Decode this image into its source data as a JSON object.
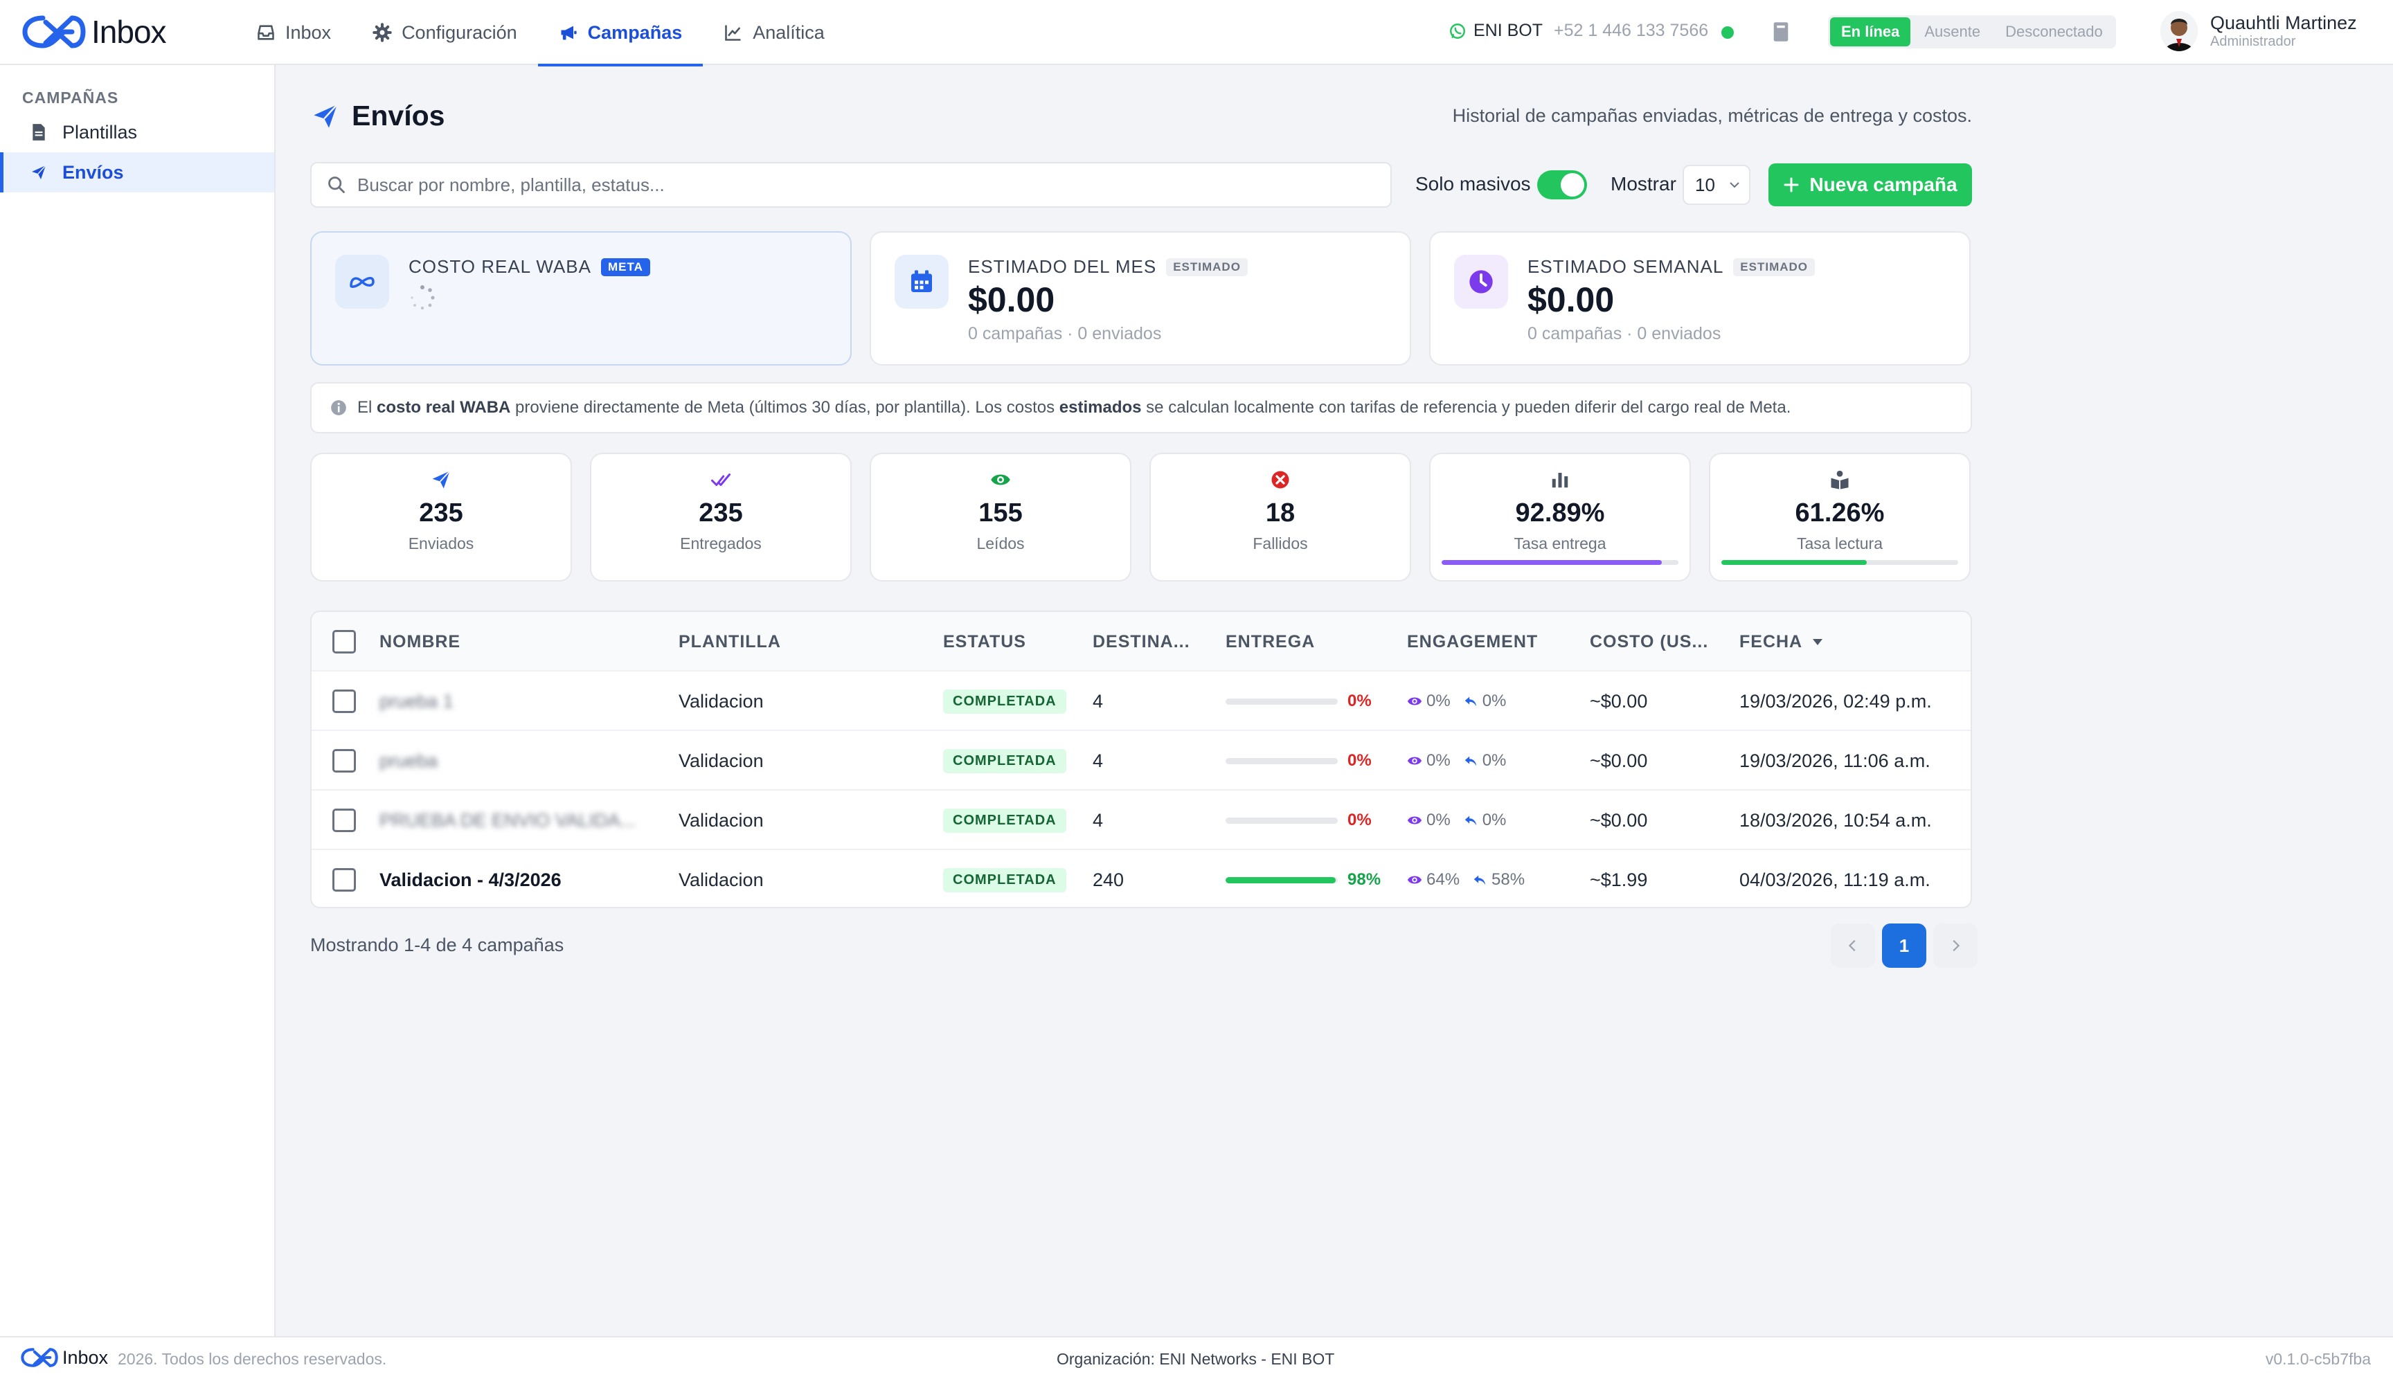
{
  "app": {
    "brand": "Inbox"
  },
  "nav": {
    "tabs": [
      {
        "label": "Inbox",
        "icon": "inbox-icon"
      },
      {
        "label": "Configuración",
        "icon": "gear-icon"
      },
      {
        "label": "Campañas",
        "icon": "megaphone-icon",
        "active": true
      },
      {
        "label": "Analítica",
        "icon": "chart-line-icon"
      }
    ]
  },
  "bot": {
    "name": "ENI BOT",
    "phone": "+52 1 446 133 7566"
  },
  "presence": {
    "options": [
      "En línea",
      "Ausente",
      "Desconectado"
    ],
    "selected": "En línea"
  },
  "user": {
    "name": "Quauhtli Martinez",
    "role": "Administrador"
  },
  "sidebar": {
    "heading": "CAMPAÑAS",
    "items": [
      {
        "label": "Plantillas",
        "icon": "document-icon"
      },
      {
        "label": "Envíos",
        "icon": "paper-plane-icon",
        "active": true
      }
    ]
  },
  "page": {
    "title": "Envíos",
    "subtitle": "Historial de campañas enviadas, métricas de entrega y costos."
  },
  "search": {
    "placeholder": "Buscar por nombre, plantilla, estatus...",
    "value": ""
  },
  "filters": {
    "solo_masivos_label": "Solo masivos",
    "solo_masivos_on": true,
    "show_label": "Mostrar",
    "show_value": "10"
  },
  "new_campaign_label": "Nueva campaña",
  "cost_cards": [
    {
      "label": "COSTO REAL WABA",
      "badge": "META",
      "loading": true
    },
    {
      "label": "ESTIMADO DEL MES",
      "badge": "ESTIMADO",
      "value": "$0.00",
      "footer": "0 campañas · 0 enviados"
    },
    {
      "label": "ESTIMADO SEMANAL",
      "badge": "ESTIMADO",
      "value": "$0.00",
      "footer": "0 campañas · 0 enviados"
    }
  ],
  "info": {
    "p1": "El ",
    "b1": "costo real WABA",
    "p2": " proviene directamente de Meta (últimos 30 días, por plantilla). Los costos ",
    "b2": "estimados",
    "p3": " se calculan localmente con tarifas de referencia y pueden diferir del cargo real de Meta."
  },
  "stats": [
    {
      "value": "235",
      "label": "Enviados",
      "icon": "paper-plane-icon"
    },
    {
      "value": "235",
      "label": "Entregados",
      "icon": "double-check-icon"
    },
    {
      "value": "155",
      "label": "Leídos",
      "icon": "eye-icon"
    },
    {
      "value": "18",
      "label": "Fallidos",
      "icon": "x-circle-icon"
    },
    {
      "value": "92.89%",
      "label": "Tasa entrega",
      "icon": "bar-chart-icon",
      "progress": 0.9289
    },
    {
      "value": "61.26%",
      "label": "Tasa lectura",
      "icon": "book-reader-icon",
      "progress": 0.6126
    }
  ],
  "table": {
    "columns": [
      "NOMBRE",
      "PLANTILLA",
      "ESTATUS",
      "DESTINA...",
      "ENTREGA",
      "ENGAGEMENT",
      "COSTO (US...",
      "FECHA"
    ],
    "rows": [
      {
        "name": "prueba 1",
        "name_blurred": true,
        "template": "Validacion",
        "status": "COMPLETADA",
        "recipients": "4",
        "delivery_pct": "0%",
        "delivery": 0,
        "read": "0%",
        "reply": "0%",
        "cost": "~$0.00",
        "date": "19/03/2026, 02:49 p.m."
      },
      {
        "name": "prueba",
        "name_blurred": true,
        "template": "Validacion",
        "status": "COMPLETADA",
        "recipients": "4",
        "delivery_pct": "0%",
        "delivery": 0,
        "read": "0%",
        "reply": "0%",
        "cost": "~$0.00",
        "date": "19/03/2026, 11:06 a.m."
      },
      {
        "name": "PRUEBA DE ENVIO VALIDA...",
        "name_blurred": true,
        "template": "Validacion",
        "status": "COMPLETADA",
        "recipients": "4",
        "delivery_pct": "0%",
        "delivery": 0,
        "read": "0%",
        "reply": "0%",
        "cost": "~$0.00",
        "date": "18/03/2026, 10:54 a.m."
      },
      {
        "name": "Validacion - 4/3/2026",
        "name_blurred": false,
        "template": "Validacion",
        "status": "COMPLETADA",
        "recipients": "240",
        "delivery_pct": "98%",
        "delivery": 0.98,
        "read": "64%",
        "reply": "58%",
        "cost": "~$1.99",
        "date": "04/03/2026, 11:19 a.m."
      }
    ]
  },
  "pagination": {
    "summary": "Mostrando 1-4 de 4 campañas",
    "current": "1"
  },
  "footer": {
    "copyright": "2026. Todos los derechos reservados.",
    "org": "Organización: ENI Networks - ENI BOT",
    "version": "v0.1.0-c5b7fba"
  },
  "colors": {
    "primary": "#2563eb",
    "success": "#22c55e",
    "danger": "#dc2626",
    "purple": "#7c3aed"
  }
}
